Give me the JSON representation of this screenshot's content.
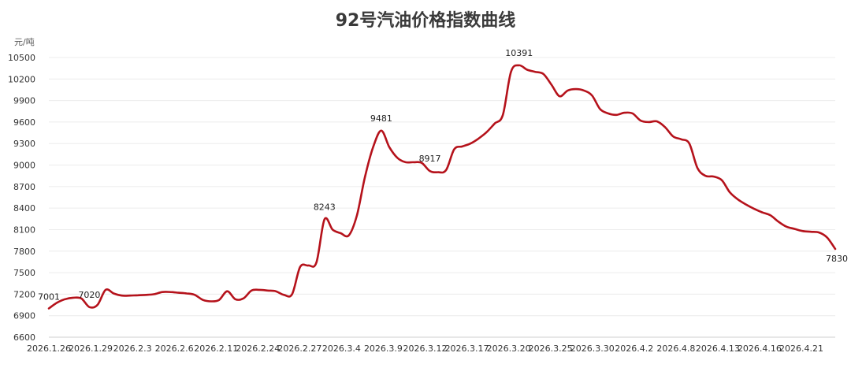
{
  "chart_data": {
    "type": "line",
    "title": "92号汽油价格指数曲线",
    "ylabel": "元/吨",
    "xlabel": "",
    "ylim": [
      6600,
      10500
    ],
    "yticks": [
      6600,
      6900,
      7200,
      7500,
      7800,
      8100,
      8400,
      8700,
      9000,
      9300,
      9600,
      9900,
      10200,
      10500
    ],
    "x_tick_labels": [
      "2026.1.26",
      "2026.1.29",
      "2026.2.3",
      "2026.2.6",
      "2026.2.11",
      "2026.2.24",
      "2026.2.27",
      "2026.3.4",
      "2026.3.9",
      "2026.3.12",
      "2026.3.17",
      "2026.3.20",
      "2026.3.25",
      "2026.3.30",
      "2026.4.2",
      "2026.4.8",
      "2026.4.13",
      "2026.4.16",
      "2026.4.21"
    ],
    "grid": true,
    "line_color": "#b5121b",
    "series": [
      {
        "values": [
          7001,
          7080,
          7130,
          7150,
          7140,
          7020,
          7050,
          7260,
          7210,
          7180,
          7180,
          7185,
          7190,
          7200,
          7230,
          7230,
          7220,
          7210,
          7190,
          7120,
          7100,
          7120,
          7240,
          7130,
          7140,
          7250,
          7260,
          7250,
          7240,
          7190,
          7200,
          7580,
          7600,
          7640,
          8243,
          8100,
          8050,
          8020,
          8300,
          8840,
          9250,
          9481,
          9250,
          9100,
          9040,
          9040,
          9030,
          8917,
          8900,
          8930,
          9220,
          9260,
          9300,
          9370,
          9460,
          9580,
          9700,
          10300,
          10391,
          10330,
          10300,
          10270,
          10120,
          9960,
          10040,
          10060,
          10040,
          9970,
          9780,
          9720,
          9700,
          9730,
          9720,
          9620,
          9600,
          9610,
          9530,
          9400,
          9360,
          9300,
          8960,
          8850,
          8840,
          8790,
          8620,
          8520,
          8450,
          8390,
          8340,
          8300,
          8210,
          8140,
          8110,
          8080,
          8070,
          8060,
          7990,
          7830
        ]
      }
    ],
    "annotations": [
      {
        "index": 0,
        "value": 7001,
        "label": "7001"
      },
      {
        "index": 5,
        "value": 7020,
        "label": "7020"
      },
      {
        "index": 34,
        "value": 8243,
        "label": "8243"
      },
      {
        "index": 41,
        "value": 9481,
        "label": "9481"
      },
      {
        "index": 47,
        "value": 8917,
        "label": "8917"
      },
      {
        "index": 58,
        "value": 10391,
        "label": "10391"
      },
      {
        "index": 97,
        "value": 7830,
        "label": "7830"
      }
    ]
  }
}
